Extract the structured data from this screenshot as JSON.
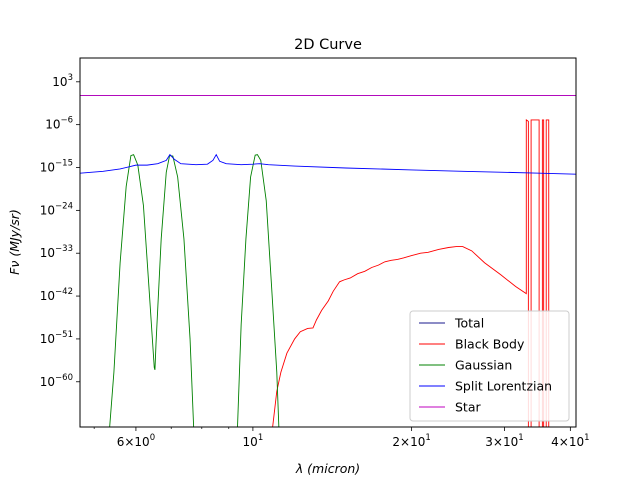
{
  "chart_data": {
    "type": "line",
    "title": "2D Curve",
    "xlabel": "λ (micron)",
    "ylabel": "Fν (MJy/sr)",
    "xscale": "log",
    "yscale": "log",
    "xlim": [
      4.7,
      41
    ],
    "ylim_log10": [
      -69.5,
      8
    ],
    "x_ticks": [
      {
        "value": 6,
        "mantissa": "6",
        "exponent": "0"
      },
      {
        "value": 10,
        "mantissa": "10",
        "exponent": "1"
      },
      {
        "value": 20,
        "mantissa": "2",
        "exponent": "1"
      },
      {
        "value": 30,
        "mantissa": "3",
        "exponent": "1"
      },
      {
        "value": 40,
        "mantissa": "4",
        "exponent": "1"
      }
    ],
    "y_ticks": [
      {
        "exp": 3,
        "label": "3"
      },
      {
        "exp": -6,
        "label": "−6"
      },
      {
        "exp": -15,
        "label": "−15"
      },
      {
        "exp": -24,
        "label": "−24"
      },
      {
        "exp": -33,
        "label": "−33"
      },
      {
        "exp": -42,
        "label": "−42"
      },
      {
        "exp": -51,
        "label": "−51"
      },
      {
        "exp": -60,
        "label": "−60"
      }
    ],
    "legend_position": "lower-right",
    "series": [
      {
        "name": "Total",
        "color": "#1a1a8c",
        "points_log10y": [
          [
            4.7,
            0.1
          ],
          [
            41,
            0.1
          ]
        ]
      },
      {
        "name": "Black Body",
        "color": "#ff0000",
        "points_log10y": [
          [
            10.9,
            -69.5
          ],
          [
            11.1,
            -62
          ],
          [
            11.3,
            -58
          ],
          [
            11.6,
            -54
          ],
          [
            12.0,
            -51
          ],
          [
            12.3,
            -49.5
          ],
          [
            12.7,
            -48.8
          ],
          [
            13.0,
            -48.7
          ],
          [
            13.2,
            -47
          ],
          [
            13.5,
            -45
          ],
          [
            13.9,
            -43
          ],
          [
            14.2,
            -41
          ],
          [
            14.6,
            -39
          ],
          [
            14.9,
            -38.6
          ],
          [
            15.3,
            -38.2
          ],
          [
            15.8,
            -37.3
          ],
          [
            16.3,
            -36.8
          ],
          [
            16.8,
            -36.0
          ],
          [
            17.3,
            -35.5
          ],
          [
            17.8,
            -34.8
          ],
          [
            18.3,
            -34.5
          ],
          [
            18.8,
            -34.3
          ],
          [
            19.3,
            -34.0
          ],
          [
            20.0,
            -33.5
          ],
          [
            20.8,
            -33.0
          ],
          [
            21.5,
            -32.8
          ],
          [
            22.5,
            -32.2
          ],
          [
            23.5,
            -31.8
          ],
          [
            24.3,
            -31.6
          ],
          [
            25.0,
            -31.6
          ],
          [
            26.0,
            -32.5
          ],
          [
            27.5,
            -35
          ],
          [
            29.5,
            -37.5
          ],
          [
            31.5,
            -40
          ],
          [
            33.0,
            -41.5
          ],
          [
            33.0,
            -5
          ],
          [
            33.3,
            -5.3
          ],
          [
            33.3,
            -69.5
          ],
          [
            33.7,
            -69.5
          ],
          [
            33.7,
            -5
          ],
          [
            34.9,
            -5
          ],
          [
            34.9,
            -69.5
          ],
          [
            35.4,
            -69.5
          ],
          [
            35.4,
            -5
          ],
          [
            35.6,
            -5
          ],
          [
            35.6,
            -69.5
          ],
          [
            36.0,
            -69.5
          ],
          [
            36.0,
            -5
          ],
          [
            36.4,
            -5
          ],
          [
            36.4,
            -69.5
          ]
        ]
      },
      {
        "name": "Gaussian",
        "color": "#008000",
        "points_log10y": [
          [
            5.35,
            -69.5
          ],
          [
            5.45,
            -58
          ],
          [
            5.6,
            -35
          ],
          [
            5.75,
            -19
          ],
          [
            5.87,
            -12.5
          ],
          [
            5.94,
            -12.3
          ],
          [
            6.05,
            -14.5
          ],
          [
            6.2,
            -23
          ],
          [
            6.35,
            -40
          ],
          [
            6.5,
            -57
          ],
          [
            6.52,
            -57.5
          ],
          [
            6.55,
            -52
          ],
          [
            6.7,
            -30
          ],
          [
            6.85,
            -16
          ],
          [
            6.95,
            -12.5
          ],
          [
            7.05,
            -12.6
          ],
          [
            7.2,
            -17
          ],
          [
            7.4,
            -30
          ],
          [
            7.6,
            -51
          ],
          [
            7.72,
            -69.5
          ],
          [
            9.35,
            -69.5
          ],
          [
            9.5,
            -48
          ],
          [
            9.7,
            -30
          ],
          [
            9.9,
            -17
          ],
          [
            10.1,
            -12.4
          ],
          [
            10.2,
            -12.3
          ],
          [
            10.35,
            -13.5
          ],
          [
            10.6,
            -22
          ],
          [
            10.85,
            -40
          ],
          [
            11.1,
            -58
          ],
          [
            11.2,
            -69.5
          ]
        ]
      },
      {
        "name": "Split Lorentzian",
        "color": "#0000ff",
        "points_log10y": [
          [
            4.7,
            -16.2
          ],
          [
            5.2,
            -15.8
          ],
          [
            5.6,
            -15.3
          ],
          [
            5.85,
            -14.8
          ],
          [
            6.0,
            -14.5
          ],
          [
            6.3,
            -14.5
          ],
          [
            6.6,
            -14.2
          ],
          [
            6.85,
            -13.5
          ],
          [
            6.96,
            -12.3
          ],
          [
            7.1,
            -13.3
          ],
          [
            7.3,
            -14.2
          ],
          [
            7.8,
            -14.4
          ],
          [
            8.2,
            -14.3
          ],
          [
            8.4,
            -13.5
          ],
          [
            8.52,
            -12.3
          ],
          [
            8.65,
            -13.7
          ],
          [
            8.9,
            -14.2
          ],
          [
            9.5,
            -14.4
          ],
          [
            10.0,
            -14.3
          ],
          [
            10.3,
            -14.2
          ],
          [
            10.7,
            -14.4
          ],
          [
            12,
            -14.7
          ],
          [
            15,
            -15.1
          ],
          [
            20,
            -15.5
          ],
          [
            25,
            -15.8
          ],
          [
            30,
            -16.0
          ],
          [
            35,
            -16.2
          ],
          [
            41,
            -16.4
          ]
        ]
      },
      {
        "name": "Star",
        "color": "#bf00bf",
        "points_log10y": [
          [
            4.7,
            0.1
          ],
          [
            41,
            0.1
          ]
        ]
      }
    ]
  }
}
